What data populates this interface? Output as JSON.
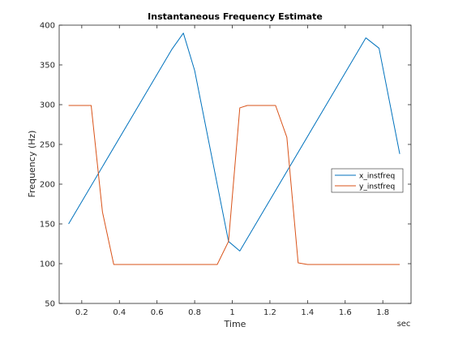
{
  "chart_data": {
    "type": "line",
    "title": "Instantaneous Frequency Estimate",
    "xlabel": "Time",
    "ylabel": "Frequency (Hz)",
    "x_unit_label": "sec",
    "xlim": [
      0.08,
      1.95
    ],
    "ylim": [
      50,
      400
    ],
    "xticks": [
      0.2,
      0.4,
      0.6,
      0.8,
      1,
      1.2,
      1.4,
      1.6,
      1.8
    ],
    "xtick_labels": [
      "0.2",
      "0.4",
      "0.6",
      "0.8",
      "1",
      "1.2",
      "1.4",
      "1.6",
      "1.8"
    ],
    "yticks": [
      50,
      100,
      150,
      200,
      250,
      300,
      350,
      400
    ],
    "ytick_labels": [
      "50",
      "100",
      "150",
      "200",
      "250",
      "300",
      "350",
      "400"
    ],
    "grid": false,
    "legend_position": "right",
    "series": [
      {
        "name": "x_instfreq",
        "color": "#0072BD",
        "x": [
          0.13,
          0.68,
          0.74,
          0.8,
          0.98,
          1.04,
          1.71,
          1.78,
          1.89
        ],
        "y": [
          150,
          370,
          390,
          343,
          128,
          116,
          384,
          371,
          238
        ]
      },
      {
        "name": "y_instfreq",
        "color": "#D95319",
        "x": [
          0.13,
          0.25,
          0.31,
          0.37,
          0.92,
          0.98,
          1.04,
          1.08,
          1.23,
          1.29,
          1.35,
          1.4,
          1.89
        ],
        "y": [
          299,
          299,
          165,
          99,
          99,
          128,
          296,
          299,
          299,
          259,
          101,
          99,
          99
        ]
      }
    ]
  }
}
